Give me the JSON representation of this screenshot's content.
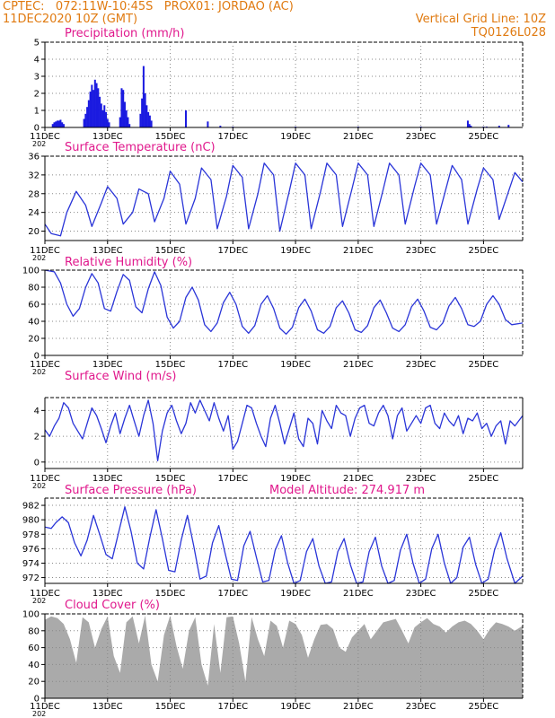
{
  "header": {
    "line1": "CPTEC:   072:11W-10:45S   PROX01: JORDAO (AC)",
    "line2": "11DEC2020 10Z (GMT)",
    "grid_note": "Vertical Grid Line: 10Z",
    "code": "TQ0126L028"
  },
  "colors": {
    "header": "#e07a10",
    "title": "#e0188c",
    "series": "#2a35d8",
    "bars": "#1a1ae0",
    "cloud": "#aaaaaa",
    "grid": "#888888"
  },
  "x_axis": {
    "tick_labels": [
      "11DEC",
      "13DEC",
      "15DEC",
      "17DEC",
      "19DEC",
      "21DEC",
      "23DEC",
      "25DEC"
    ],
    "tick_days": [
      0,
      2,
      4,
      6,
      8,
      10,
      12,
      14
    ],
    "stub": "202",
    "range_days": [
      0,
      15.25
    ]
  },
  "chart_data": [
    {
      "id": "precip",
      "type": "bar",
      "title": "Precipitation (mm/h)",
      "ylim": [
        0,
        5
      ],
      "yticks": [
        0,
        1,
        2,
        3,
        4,
        5
      ],
      "grid": true,
      "x_unit": "days since 11DEC2020 10Z",
      "x": [
        0.25,
        0.3,
        0.35,
        0.4,
        0.45,
        0.5,
        0.55,
        0.6,
        1.25,
        1.3,
        1.35,
        1.4,
        1.45,
        1.5,
        1.55,
        1.6,
        1.65,
        1.7,
        1.75,
        1.8,
        1.85,
        1.9,
        1.95,
        2.0,
        2.05,
        2.4,
        2.45,
        2.5,
        2.55,
        2.6,
        2.65,
        2.7,
        3.05,
        3.1,
        3.15,
        3.2,
        3.25,
        3.3,
        3.35,
        3.4,
        4.5,
        5.2,
        5.6,
        6.0,
        8.0,
        10.0,
        12.0,
        13.5,
        13.55,
        13.6,
        14.0,
        14.1,
        14.5,
        14.8
      ],
      "values": [
        0.2,
        0.3,
        0.35,
        0.4,
        0.4,
        0.45,
        0.3,
        0.2,
        0.5,
        0.8,
        1.2,
        1.6,
        2.1,
        2.5,
        2.2,
        2.8,
        2.6,
        2.3,
        1.8,
        1.4,
        1.0,
        1.3,
        0.9,
        0.5,
        0.3,
        0.6,
        2.3,
        2.2,
        1.5,
        1.0,
        0.6,
        0.2,
        0.8,
        1.7,
        3.6,
        2.0,
        1.3,
        0.9,
        0.7,
        0.4,
        1.0,
        0.35,
        0.1,
        0.05,
        0.05,
        0.05,
        0.05,
        0.4,
        0.2,
        0.1,
        0.05,
        0.05,
        0.1,
        0.15
      ]
    },
    {
      "id": "temp",
      "type": "line",
      "title": "Surface Temperature (nC)",
      "ylim": [
        18,
        36
      ],
      "yticks": [
        20,
        24,
        28,
        32,
        36
      ],
      "grid": true,
      "x": [
        0,
        0.2,
        0.5,
        0.7,
        1.0,
        1.3,
        1.5,
        1.8,
        2.0,
        2.3,
        2.5,
        2.8,
        3.0,
        3.3,
        3.5,
        3.8,
        4.0,
        4.3,
        4.5,
        4.8,
        5.0,
        5.3,
        5.5,
        5.8,
        6.0,
        6.3,
        6.5,
        6.8,
        7.0,
        7.3,
        7.5,
        7.8,
        8.0,
        8.3,
        8.5,
        8.8,
        9.0,
        9.3,
        9.5,
        9.8,
        10.0,
        10.3,
        10.5,
        10.8,
        11.0,
        11.3,
        11.5,
        11.8,
        12.0,
        12.3,
        12.5,
        12.8,
        13.0,
        13.3,
        13.5,
        13.8,
        14.0,
        14.3,
        14.5,
        14.8,
        15.0,
        15.25
      ],
      "values": [
        21.5,
        19.5,
        19.0,
        24.0,
        28.5,
        25.5,
        21.0,
        26.0,
        29.5,
        27.0,
        21.5,
        24.0,
        29.0,
        28.0,
        22.0,
        27.0,
        32.8,
        30.0,
        21.5,
        27.0,
        33.5,
        31.0,
        20.5,
        27.5,
        34.0,
        31.5,
        20.5,
        28.0,
        34.5,
        32.0,
        20.0,
        28.5,
        34.5,
        32.0,
        20.5,
        28.5,
        34.5,
        32.0,
        21.0,
        29.0,
        34.5,
        32.0,
        21.0,
        29.0,
        34.5,
        32.0,
        21.5,
        29.5,
        34.5,
        32.0,
        21.5,
        29.0,
        34.0,
        31.0,
        21.5,
        29.0,
        33.5,
        31.0,
        22.5,
        28.5,
        32.5,
        30.5
      ]
    },
    {
      "id": "rh",
      "type": "line",
      "title": "Relative Humidity (%)",
      "ylim": [
        0,
        100
      ],
      "yticks": [
        0,
        20,
        40,
        60,
        80,
        100
      ],
      "grid": true,
      "x": [
        0,
        0.3,
        0.5,
        0.7,
        0.9,
        1.1,
        1.3,
        1.5,
        1.7,
        1.9,
        2.1,
        2.3,
        2.5,
        2.7,
        2.9,
        3.1,
        3.3,
        3.5,
        3.7,
        3.9,
        4.1,
        4.3,
        4.5,
        4.7,
        4.9,
        5.1,
        5.3,
        5.5,
        5.7,
        5.9,
        6.1,
        6.3,
        6.5,
        6.7,
        6.9,
        7.1,
        7.3,
        7.5,
        7.7,
        7.9,
        8.1,
        8.3,
        8.5,
        8.7,
        8.9,
        9.1,
        9.3,
        9.5,
        9.7,
        9.9,
        10.1,
        10.3,
        10.5,
        10.7,
        10.9,
        11.1,
        11.3,
        11.5,
        11.7,
        11.9,
        12.1,
        12.3,
        12.5,
        12.7,
        12.9,
        13.1,
        13.3,
        13.5,
        13.7,
        13.9,
        14.1,
        14.3,
        14.5,
        14.7,
        14.9,
        15.25
      ],
      "values": [
        100,
        98,
        85,
        60,
        46,
        55,
        80,
        96,
        85,
        55,
        52,
        75,
        95,
        88,
        57,
        50,
        78,
        98,
        82,
        45,
        32,
        40,
        68,
        80,
        65,
        36,
        28,
        38,
        62,
        74,
        60,
        34,
        26,
        35,
        60,
        70,
        55,
        32,
        25,
        33,
        56,
        66,
        52,
        30,
        26,
        34,
        56,
        64,
        50,
        30,
        27,
        35,
        56,
        65,
        50,
        32,
        28,
        36,
        57,
        66,
        52,
        33,
        30,
        38,
        58,
        68,
        55,
        36,
        34,
        40,
        60,
        70,
        60,
        42,
        36,
        38
      ]
    },
    {
      "id": "wind",
      "type": "line",
      "title": "Surface Wind (m/s)",
      "ylim": [
        -0.5,
        5
      ],
      "yticks": [
        0,
        2,
        4
      ],
      "grid": true,
      "x": [
        0,
        0.15,
        0.3,
        0.45,
        0.6,
        0.75,
        0.9,
        1.05,
        1.2,
        1.35,
        1.5,
        1.65,
        1.8,
        1.95,
        2.1,
        2.25,
        2.4,
        2.55,
        2.7,
        2.85,
        3.0,
        3.15,
        3.3,
        3.45,
        3.6,
        3.75,
        3.9,
        4.05,
        4.2,
        4.35,
        4.5,
        4.65,
        4.8,
        4.95,
        5.1,
        5.25,
        5.4,
        5.55,
        5.7,
        5.85,
        6.0,
        6.15,
        6.3,
        6.45,
        6.6,
        6.75,
        6.9,
        7.05,
        7.2,
        7.35,
        7.5,
        7.65,
        7.8,
        7.95,
        8.1,
        8.25,
        8.4,
        8.55,
        8.7,
        8.85,
        9.0,
        9.15,
        9.3,
        9.45,
        9.6,
        9.75,
        9.9,
        10.05,
        10.2,
        10.35,
        10.5,
        10.65,
        10.8,
        10.95,
        11.1,
        11.25,
        11.4,
        11.55,
        11.7,
        11.85,
        12.0,
        12.15,
        12.3,
        12.45,
        12.6,
        12.75,
        12.9,
        13.05,
        13.2,
        13.35,
        13.5,
        13.65,
        13.8,
        13.95,
        14.1,
        14.25,
        14.4,
        14.55,
        14.7,
        14.85,
        15.0,
        15.25
      ],
      "values": [
        2.5,
        2.0,
        2.8,
        3.4,
        4.6,
        4.2,
        3.0,
        2.4,
        1.8,
        3.0,
        4.2,
        3.6,
        2.6,
        1.5,
        2.8,
        3.8,
        2.2,
        3.4,
        4.4,
        3.2,
        2.0,
        3.6,
        4.8,
        3.0,
        0.1,
        2.4,
        3.8,
        4.4,
        3.2,
        2.2,
        3.0,
        4.6,
        3.8,
        4.8,
        4.0,
        3.2,
        4.6,
        3.4,
        2.4,
        3.6,
        1.0,
        1.6,
        3.0,
        4.4,
        4.2,
        3.0,
        2.0,
        1.2,
        3.4,
        4.4,
        3.0,
        1.4,
        2.6,
        3.8,
        1.8,
        1.2,
        3.4,
        3.0,
        1.4,
        4.0,
        3.2,
        2.6,
        4.4,
        3.8,
        3.6,
        2.0,
        3.4,
        4.2,
        4.4,
        3.0,
        2.8,
        3.8,
        4.4,
        3.6,
        1.8,
        3.6,
        4.2,
        2.4,
        3.0,
        3.6,
        3.0,
        4.2,
        4.4,
        3.0,
        2.6,
        3.8,
        3.2,
        2.8,
        3.6,
        2.2,
        3.4,
        3.2,
        3.8,
        2.6,
        3.0,
        2.0,
        2.8,
        3.2,
        1.4,
        3.2,
        2.8,
        3.6
      ]
    },
    {
      "id": "pressure",
      "type": "line",
      "title": "Surface Pressure (hPa)",
      "annotation": "Model Altitude: 274.917 m",
      "ylim": [
        971.2,
        983
      ],
      "yticks": [
        972,
        974,
        976,
        978,
        980,
        982
      ],
      "grid": true,
      "x": [
        0,
        0.2,
        0.35,
        0.55,
        0.75,
        0.95,
        1.15,
        1.35,
        1.55,
        1.75,
        1.95,
        2.15,
        2.35,
        2.55,
        2.75,
        2.95,
        3.15,
        3.35,
        3.55,
        3.75,
        3.95,
        4.15,
        4.35,
        4.55,
        4.75,
        4.95,
        5.15,
        5.35,
        5.55,
        5.75,
        5.95,
        6.15,
        6.35,
        6.55,
        6.75,
        6.95,
        7.15,
        7.35,
        7.55,
        7.75,
        7.95,
        8.15,
        8.35,
        8.55,
        8.75,
        8.95,
        9.15,
        9.35,
        9.55,
        9.75,
        9.95,
        10.15,
        10.35,
        10.55,
        10.75,
        10.95,
        11.15,
        11.35,
        11.55,
        11.75,
        11.95,
        12.15,
        12.35,
        12.55,
        12.75,
        12.95,
        13.15,
        13.35,
        13.55,
        13.75,
        13.95,
        14.15,
        14.35,
        14.55,
        14.75,
        15.0,
        15.25
      ],
      "values": [
        979.0,
        978.8,
        979.6,
        980.4,
        979.6,
        976.8,
        975.0,
        977.2,
        980.6,
        978.0,
        975.2,
        974.6,
        978.2,
        981.8,
        978.4,
        974.0,
        973.2,
        977.6,
        981.4,
        977.4,
        973.0,
        972.8,
        977.2,
        980.6,
        976.4,
        971.8,
        972.2,
        976.8,
        979.2,
        975.4,
        971.8,
        971.6,
        976.4,
        978.4,
        974.8,
        971.4,
        971.6,
        975.8,
        977.8,
        974.0,
        971.0,
        971.6,
        975.6,
        977.4,
        973.6,
        970.6,
        971.4,
        975.6,
        977.4,
        973.8,
        970.6,
        971.4,
        975.6,
        977.6,
        973.6,
        970.6,
        971.6,
        975.8,
        978.0,
        974.0,
        970.8,
        971.8,
        976.0,
        978.0,
        974.0,
        971.0,
        972.0,
        976.2,
        977.6,
        973.8,
        970.8,
        971.8,
        975.8,
        978.2,
        974.6,
        971.0,
        972.2
      ]
    },
    {
      "id": "cloud",
      "type": "area",
      "title": "Cloud Cover (%)",
      "ylim": [
        0,
        100
      ],
      "yticks": [
        0,
        20,
        40,
        60,
        80,
        100
      ],
      "grid": true,
      "x": [
        0,
        0.2,
        0.4,
        0.6,
        0.8,
        1.0,
        1.2,
        1.4,
        1.6,
        1.8,
        2.0,
        2.2,
        2.4,
        2.6,
        2.8,
        3.0,
        3.2,
        3.4,
        3.6,
        3.8,
        4.0,
        4.2,
        4.4,
        4.6,
        4.8,
        5.0,
        5.2,
        5.4,
        5.6,
        5.8,
        6.0,
        6.2,
        6.4,
        6.6,
        6.8,
        7.0,
        7.2,
        7.4,
        7.6,
        7.8,
        8.0,
        8.2,
        8.4,
        8.6,
        8.8,
        9.0,
        9.2,
        9.4,
        9.6,
        9.8,
        10.0,
        10.2,
        10.4,
        10.6,
        10.8,
        11.0,
        11.2,
        11.4,
        11.6,
        11.8,
        12.0,
        12.2,
        12.4,
        12.6,
        12.8,
        13.0,
        13.2,
        13.4,
        13.6,
        13.8,
        14.0,
        14.2,
        14.4,
        14.6,
        14.8,
        15.0,
        15.25
      ],
      "values": [
        93,
        97,
        95,
        88,
        70,
        42,
        96,
        90,
        60,
        82,
        97,
        50,
        30,
        90,
        97,
        65,
        98,
        40,
        20,
        75,
        98,
        62,
        35,
        80,
        96,
        40,
        15,
        88,
        30,
        96,
        97,
        65,
        20,
        96,
        70,
        50,
        92,
        86,
        60,
        92,
        88,
        75,
        48,
        70,
        87,
        88,
        82,
        60,
        55,
        72,
        80,
        88,
        70,
        80,
        90,
        92,
        94,
        80,
        65,
        84,
        90,
        95,
        88,
        85,
        78,
        85,
        90,
        92,
        88,
        80,
        70,
        82,
        90,
        88,
        85,
        80,
        86
      ]
    }
  ]
}
